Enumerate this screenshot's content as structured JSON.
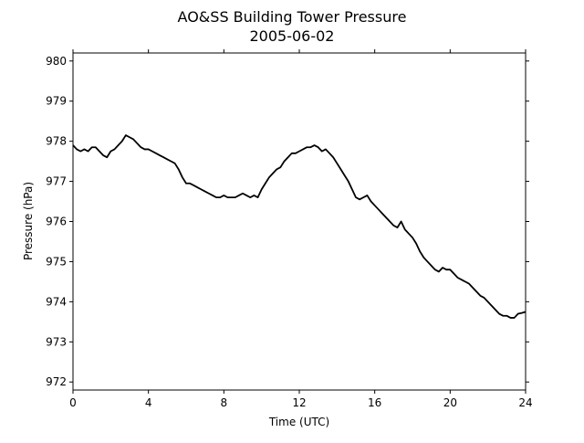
{
  "chart_data": {
    "type": "line",
    "title": "AO&SS Building Tower Pressure",
    "subtitle": "2005-06-02",
    "xlabel": "Time (UTC)",
    "ylabel": "Pressure (hPa)",
    "xlim": [
      0,
      24
    ],
    "ylim": [
      971.8,
      980.2
    ],
    "xticks": [
      0,
      4,
      8,
      12,
      16,
      20,
      24
    ],
    "yticks": [
      972,
      973,
      974,
      975,
      976,
      977,
      978,
      979,
      980
    ],
    "grid": false,
    "series": [
      {
        "line_color": "#000000",
        "x": [
          0,
          0.2,
          0.4,
          0.6,
          0.8,
          1.0,
          1.2,
          1.4,
          1.6,
          1.8,
          2.0,
          2.2,
          2.4,
          2.6,
          2.8,
          3.0,
          3.2,
          3.4,
          3.6,
          3.8,
          4.0,
          4.2,
          4.4,
          4.6,
          4.8,
          5.0,
          5.2,
          5.4,
          5.6,
          5.8,
          6.0,
          6.2,
          6.4,
          6.6,
          6.8,
          7.0,
          7.2,
          7.4,
          7.6,
          7.8,
          8.0,
          8.2,
          8.4,
          8.6,
          8.8,
          9.0,
          9.2,
          9.4,
          9.6,
          9.8,
          10.0,
          10.2,
          10.4,
          10.6,
          10.8,
          11.0,
          11.2,
          11.4,
          11.6,
          11.8,
          12.0,
          12.2,
          12.4,
          12.6,
          12.8,
          13.0,
          13.2,
          13.4,
          13.6,
          13.8,
          14.0,
          14.2,
          14.4,
          14.6,
          14.8,
          15.0,
          15.2,
          15.4,
          15.6,
          15.8,
          16.0,
          16.2,
          16.4,
          16.6,
          16.8,
          17.0,
          17.2,
          17.4,
          17.6,
          17.8,
          18.0,
          18.2,
          18.4,
          18.6,
          18.8,
          19.0,
          19.2,
          19.4,
          19.6,
          19.8,
          20.0,
          20.2,
          20.4,
          20.6,
          20.8,
          21.0,
          21.2,
          21.4,
          21.6,
          21.8,
          22.0,
          22.2,
          22.4,
          22.6,
          22.8,
          23.0,
          23.2,
          23.4,
          23.6,
          23.8,
          24.0
        ],
        "y": [
          977.9,
          977.8,
          977.75,
          977.8,
          977.75,
          977.85,
          977.85,
          977.75,
          977.65,
          977.6,
          977.75,
          977.8,
          977.9,
          978.0,
          978.15,
          978.1,
          978.05,
          977.95,
          977.85,
          977.8,
          977.8,
          977.75,
          977.7,
          977.65,
          977.6,
          977.55,
          977.5,
          977.45,
          977.3,
          977.1,
          976.95,
          976.95,
          976.9,
          976.85,
          976.8,
          976.75,
          976.7,
          976.65,
          976.6,
          976.6,
          976.65,
          976.6,
          976.6,
          976.6,
          976.65,
          976.7,
          976.65,
          976.6,
          976.65,
          976.6,
          976.8,
          976.95,
          977.1,
          977.2,
          977.3,
          977.35,
          977.5,
          977.6,
          977.7,
          977.7,
          977.75,
          977.8,
          977.85,
          977.85,
          977.9,
          977.85,
          977.75,
          977.8,
          977.7,
          977.6,
          977.45,
          977.3,
          977.15,
          977.0,
          976.8,
          976.6,
          976.55,
          976.6,
          976.65,
          976.5,
          976.4,
          976.3,
          976.2,
          976.1,
          976.0,
          975.9,
          975.85,
          976.0,
          975.8,
          975.7,
          975.6,
          975.45,
          975.25,
          975.1,
          975.0,
          974.9,
          974.8,
          974.75,
          974.85,
          974.8,
          974.8,
          974.7,
          974.6,
          974.55,
          974.5,
          974.45,
          974.35,
          974.25,
          974.15,
          974.1,
          974.0,
          973.9,
          973.8,
          973.7,
          973.65,
          973.65,
          973.6,
          973.6,
          973.7,
          973.72,
          973.75
        ]
      }
    ]
  }
}
